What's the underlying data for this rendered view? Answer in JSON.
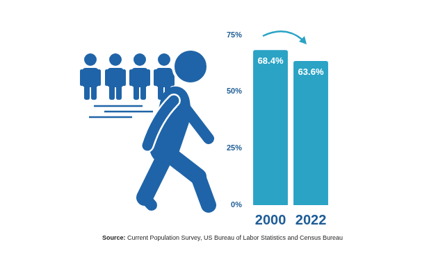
{
  "chart_data": {
    "type": "bar",
    "categories": [
      "2000",
      "2022"
    ],
    "values": [
      68.4,
      63.6
    ],
    "value_labels": [
      "68.4%",
      "63.6%"
    ],
    "data_labels": true,
    "color": "#2aa3c5",
    "ylim": [
      0,
      75
    ],
    "yticks": [
      {
        "value": 0,
        "label": "0%"
      },
      {
        "value": 25,
        "label": "25%"
      },
      {
        "value": 50,
        "label": "50%"
      },
      {
        "value": 75,
        "label": "75%"
      }
    ],
    "grid": false,
    "source": "Source: Current Population Survey, US Bureau of Labor Statistics and Census Bureau"
  }
}
